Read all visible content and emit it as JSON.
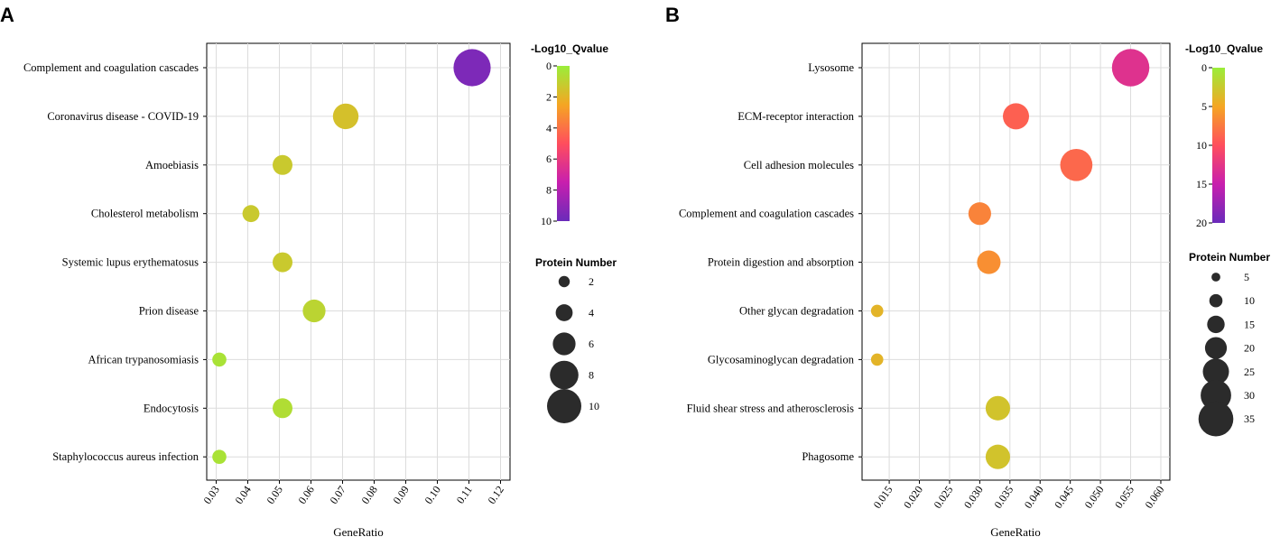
{
  "chart_data": [
    {
      "panel_label": "A",
      "type": "scatter",
      "title": "",
      "xlabel": "GeneRatio",
      "ylabel": "",
      "xlim": [
        0.027,
        0.123
      ],
      "x_ticks": [
        0.03,
        0.04,
        0.05,
        0.06,
        0.07,
        0.08,
        0.09,
        0.1,
        0.11,
        0.12
      ],
      "x_tick_labels": [
        "0.03",
        "0.04",
        "0.05",
        "0.06",
        "0.07",
        "0.08",
        "0.09",
        "0.10",
        "0.11",
        "0.12"
      ],
      "grid": true,
      "categories": [
        "Complement and coagulation cascades",
        "Coronavirus disease - COVID-19",
        "Amoebiasis",
        "Cholesterol metabolism",
        "Systemic lupus erythematosus",
        "Prion disease",
        "African trypanosomiasis",
        "Endocytosis",
        "Staphylococcus aureus infection"
      ],
      "points": [
        {
          "term": "Complement and coagulation cascades",
          "gene_ratio": 0.111,
          "protein_number": 11,
          "neg_log10_q": 9.5
        },
        {
          "term": "Coronavirus disease - COVID-19",
          "gene_ratio": 0.071,
          "protein_number": 7,
          "neg_log10_q": 1.6
        },
        {
          "term": "Amoebiasis",
          "gene_ratio": 0.051,
          "protein_number": 5,
          "neg_log10_q": 1.3
        },
        {
          "term": "Cholesterol metabolism",
          "gene_ratio": 0.041,
          "protein_number": 4,
          "neg_log10_q": 1.3
        },
        {
          "term": "Systemic lupus erythematosus",
          "gene_ratio": 0.051,
          "protein_number": 5,
          "neg_log10_q": 1.3
        },
        {
          "term": "Prion disease",
          "gene_ratio": 0.061,
          "protein_number": 6,
          "neg_log10_q": 0.9
        },
        {
          "term": "African trypanosomiasis",
          "gene_ratio": 0.031,
          "protein_number": 3,
          "neg_log10_q": 0.4
        },
        {
          "term": "Endocytosis",
          "gene_ratio": 0.051,
          "protein_number": 5,
          "neg_log10_q": 0.6
        },
        {
          "term": "Staphylococcus aureus infection",
          "gene_ratio": 0.031,
          "protein_number": 3,
          "neg_log10_q": 0.4
        }
      ],
      "color_legend": {
        "title": "-Log10_Qvalue",
        "range": [
          0,
          10
        ],
        "tick_values": [
          0,
          2,
          4,
          6,
          8,
          10
        ],
        "tick_labels": [
          "0",
          "2",
          "4",
          "6",
          "8",
          "10"
        ],
        "gradient": [
          "#9aee3a",
          "#f5a623",
          "#ff4e5d",
          "#c81fae",
          "#6a2bba"
        ]
      },
      "size_legend": {
        "title": "Protein Number",
        "values": [
          2,
          4,
          6,
          8,
          10
        ],
        "labels": [
          "2",
          "4",
          "6",
          "8",
          "10"
        ]
      }
    },
    {
      "panel_label": "B",
      "type": "scatter",
      "title": "",
      "xlabel": "GeneRatio",
      "ylabel": "",
      "xlim": [
        0.0105,
        0.0615
      ],
      "x_ticks": [
        0.015,
        0.02,
        0.025,
        0.03,
        0.035,
        0.04,
        0.045,
        0.05,
        0.055,
        0.06
      ],
      "x_tick_labels": [
        "0.015",
        "0.020",
        "0.025",
        "0.030",
        "0.035",
        "0.040",
        "0.045",
        "0.050",
        "0.055",
        "0.060"
      ],
      "grid": true,
      "categories": [
        "Lysosome",
        "ECM-receptor interaction",
        "Cell adhesion molecules",
        "Complement and coagulation cascades",
        "Protein digestion and absorption",
        "Other glycan degradation",
        "Glycosaminoglycan degradation",
        "Fluid shear stress and atherosclerosis",
        "Phagosome"
      ],
      "points": [
        {
          "term": "Lysosome",
          "gene_ratio": 0.055,
          "protein_number": 38,
          "neg_log10_q": 13.0
        },
        {
          "term": "ECM-receptor interaction",
          "gene_ratio": 0.036,
          "protein_number": 25,
          "neg_log10_q": 9.0
        },
        {
          "term": "Cell adhesion molecules",
          "gene_ratio": 0.046,
          "protein_number": 32,
          "neg_log10_q": 8.5
        },
        {
          "term": "Complement and coagulation cascades",
          "gene_ratio": 0.03,
          "protein_number": 21,
          "neg_log10_q": 7.0
        },
        {
          "term": "Protein digestion and absorption",
          "gene_ratio": 0.0315,
          "protein_number": 22,
          "neg_log10_q": 6.3
        },
        {
          "term": "Other glycan degradation",
          "gene_ratio": 0.013,
          "protein_number": 9,
          "neg_log10_q": 4.0
        },
        {
          "term": "Glycosaminoglycan degradation",
          "gene_ratio": 0.013,
          "protein_number": 9,
          "neg_log10_q": 4.0
        },
        {
          "term": "Fluid shear stress and atherosclerosis",
          "gene_ratio": 0.033,
          "protein_number": 23,
          "neg_log10_q": 3.0
        },
        {
          "term": "Phagosome",
          "gene_ratio": 0.033,
          "protein_number": 23,
          "neg_log10_q": 3.0
        }
      ],
      "color_legend": {
        "title": "-Log10_Qvalue",
        "range": [
          0,
          20
        ],
        "tick_values": [
          0,
          5,
          10,
          15,
          20
        ],
        "tick_labels": [
          "0",
          "5",
          "10",
          "15",
          "20"
        ],
        "gradient": [
          "#9aee3a",
          "#f5a623",
          "#ff4e5d",
          "#c81fae",
          "#6a2bba"
        ]
      },
      "size_legend": {
        "title": "Protein Number",
        "values": [
          5,
          10,
          15,
          20,
          25,
          30,
          35
        ],
        "labels": [
          "5",
          "10",
          "15",
          "20",
          "25",
          "30",
          "35"
        ]
      }
    }
  ]
}
